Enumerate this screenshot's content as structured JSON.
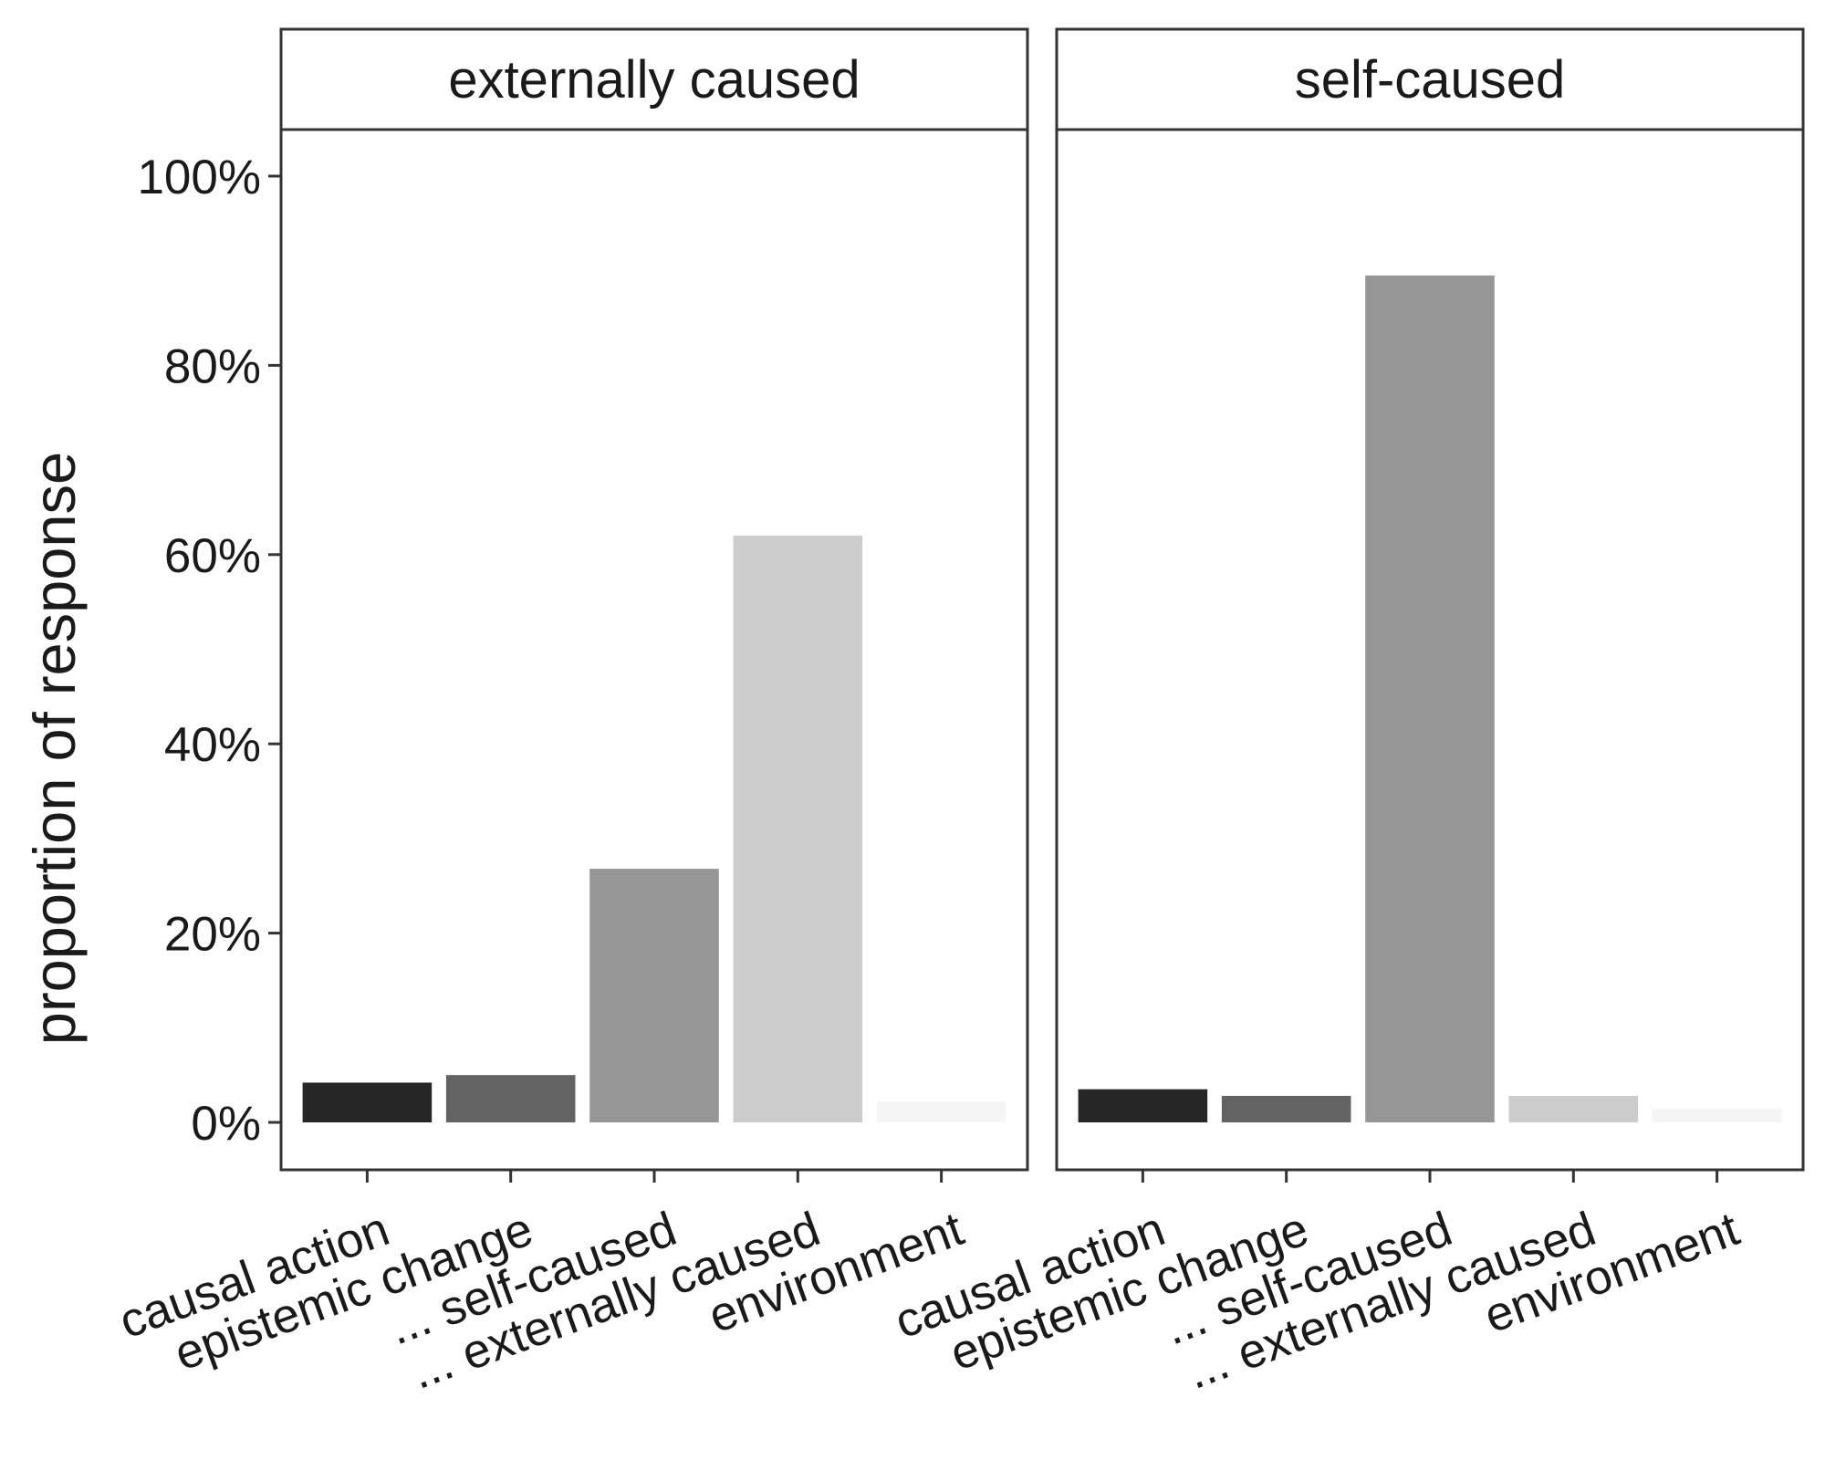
{
  "chart_data": {
    "type": "bar",
    "ylabel": "proportion of response",
    "xlabel": "",
    "ylim": [
      0,
      1.05
    ],
    "y_ticks": [
      0,
      0.2,
      0.4,
      0.6,
      0.8,
      1.0
    ],
    "y_tick_labels": [
      "0%",
      "20%",
      "40%",
      "60%",
      "80%",
      "100%"
    ],
    "categories": [
      "causal action",
      "epistemic change",
      "... self-caused",
      "... externally caused",
      "environment"
    ],
    "bar_colors": [
      "#262626",
      "#636363",
      "#969696",
      "#cccccc",
      "#f5f5f5"
    ],
    "grid": false,
    "legend": "none",
    "panels": [
      {
        "title": "externally caused",
        "values": [
          0.042,
          0.05,
          0.268,
          0.62,
          0.022
        ]
      },
      {
        "title": "self-caused",
        "values": [
          0.035,
          0.028,
          0.895,
          0.028,
          0.014
        ]
      }
    ]
  }
}
